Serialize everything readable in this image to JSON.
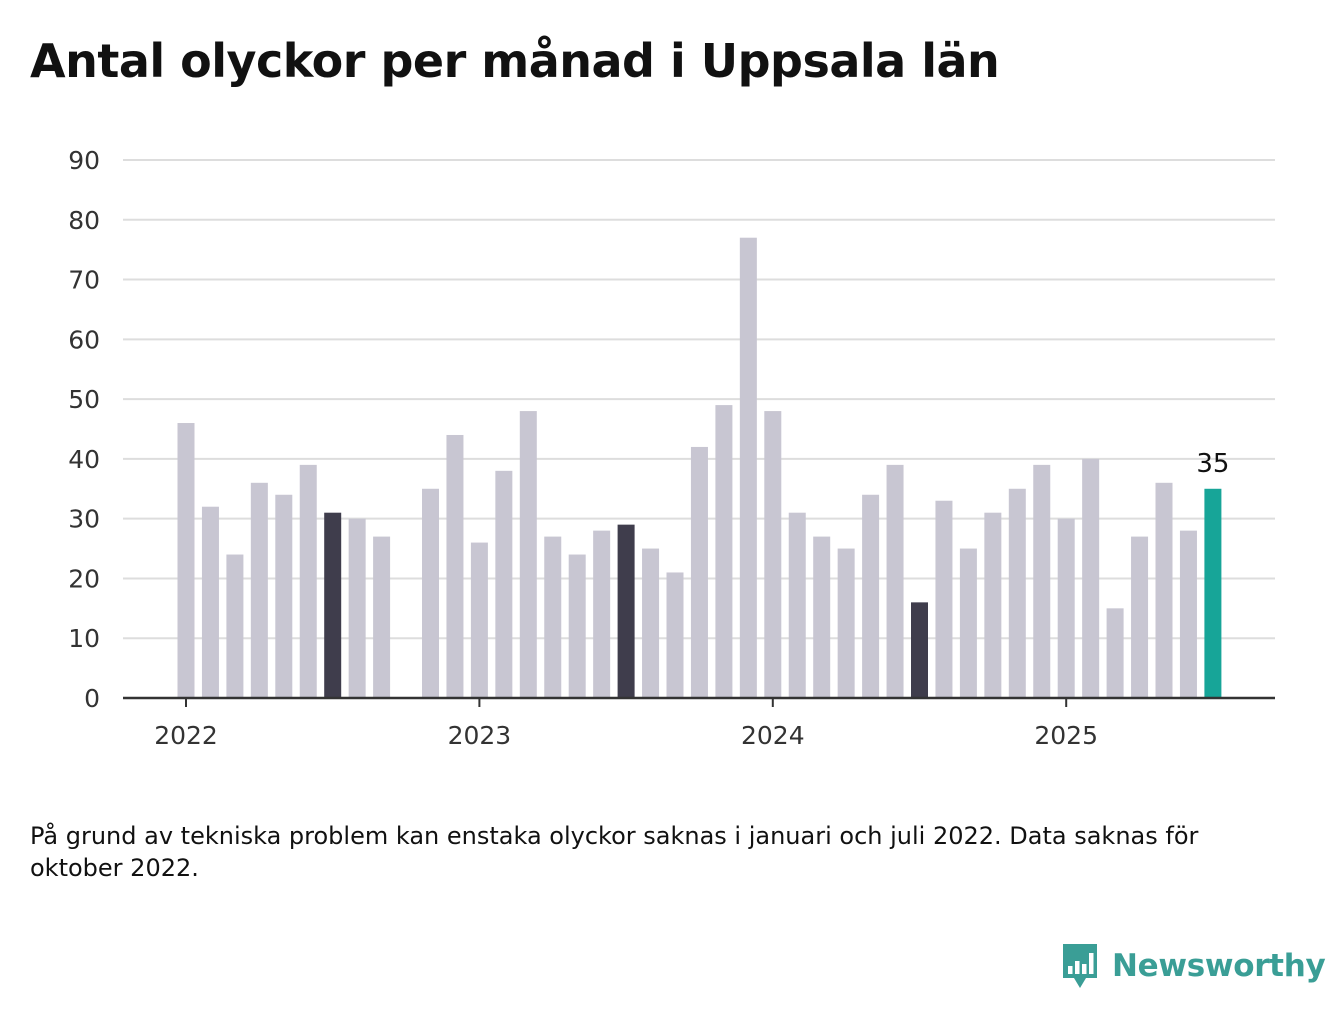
{
  "title": "Antal olyckor per månad i Uppsala län",
  "note": "På grund av tekniska problem kan enstaka olyckor saknas i januari och juli 2022. Data saknas för oktober 2022.",
  "brand": "Newsworthy",
  "colors": {
    "default_bar": "#c8c6d2",
    "july_bar": "#3f3d4c",
    "latest_bar": "#17a598",
    "grid": "#dddddd",
    "axis": "#333333",
    "brand": "#3a9e96"
  },
  "chart_data": {
    "type": "bar",
    "title": "Antal olyckor per månad i Uppsala län",
    "xlabel": "",
    "ylabel": "",
    "ylim": [
      0,
      90
    ],
    "yticks": [
      0,
      10,
      20,
      30,
      40,
      50,
      60,
      70,
      80,
      90
    ],
    "year_labels": [
      "2022",
      "2023",
      "2024",
      "2025"
    ],
    "grid": true,
    "categories": [
      "2022-01",
      "2022-02",
      "2022-03",
      "2022-04",
      "2022-05",
      "2022-06",
      "2022-07",
      "2022-08",
      "2022-09",
      "2022-10",
      "2022-11",
      "2022-12",
      "2023-01",
      "2023-02",
      "2023-03",
      "2023-04",
      "2023-05",
      "2023-06",
      "2023-07",
      "2023-08",
      "2023-09",
      "2023-10",
      "2023-11",
      "2023-12",
      "2024-01",
      "2024-02",
      "2024-03",
      "2024-04",
      "2024-05",
      "2024-06",
      "2024-07",
      "2024-08",
      "2024-09",
      "2024-10",
      "2024-11",
      "2024-12",
      "2025-01",
      "2025-02",
      "2025-03",
      "2025-04",
      "2025-05",
      "2025-06",
      "2025-07"
    ],
    "values": [
      46,
      32,
      24,
      36,
      34,
      39,
      31,
      30,
      27,
      null,
      35,
      44,
      26,
      38,
      48,
      27,
      24,
      28,
      29,
      25,
      21,
      42,
      49,
      77,
      48,
      31,
      27,
      25,
      34,
      39,
      16,
      33,
      25,
      31,
      35,
      39,
      30,
      40,
      15,
      27,
      36,
      28,
      35
    ],
    "highlighted_july": [
      "2022-07",
      "2023-07",
      "2024-07"
    ],
    "latest": "2025-07",
    "latest_label": "35"
  }
}
